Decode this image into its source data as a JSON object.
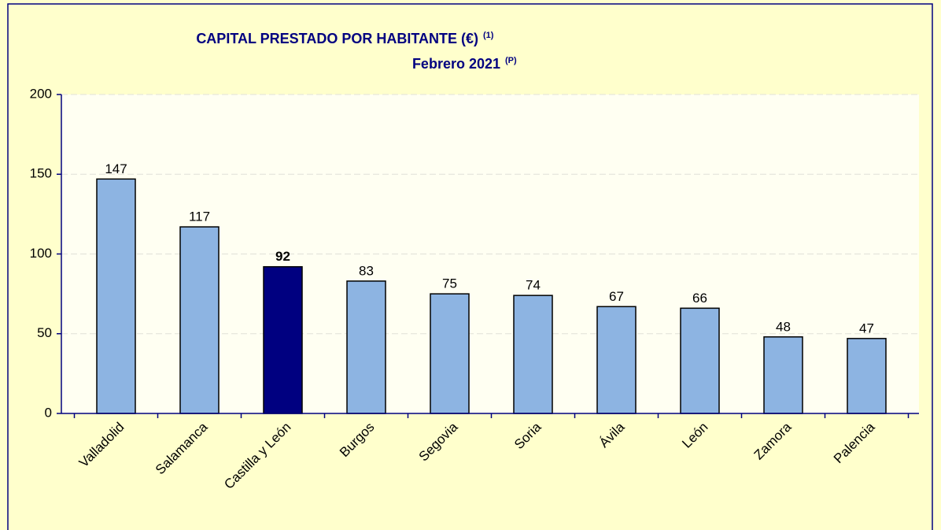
{
  "chart_data": {
    "type": "bar",
    "title": "CAPITAL PRESTADO POR HABITANTE (€)",
    "title_note": "(1)",
    "subtitle": "Febrero 2021",
    "subtitle_note": "(P)",
    "categories": [
      "Valladolid",
      "Salamanca",
      "Castilla y León",
      "Burgos",
      "Segovia",
      "Soria",
      "Ávila",
      "León",
      "Zamora",
      "Palencia"
    ],
    "values": [
      147,
      117,
      92,
      83,
      75,
      74,
      67,
      66,
      48,
      47
    ],
    "color": "#8db4e2",
    "highlight": "Castilla y León",
    "highlight_color": "#000080",
    "ylim": [
      0,
      200
    ],
    "yticks": [
      0,
      50,
      100,
      150,
      200
    ],
    "grid": true
  }
}
